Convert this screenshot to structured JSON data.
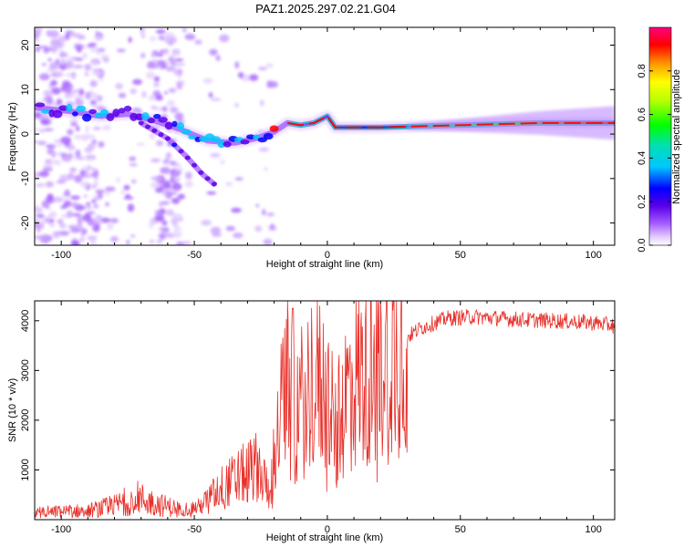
{
  "chart_data": [
    {
      "type": "heatmap",
      "title": "PAZ1.2025.297.02.21.G04",
      "xlabel": "Height of straight line (km)",
      "ylabel": "Frequency (Hz)",
      "xlim": [
        -110,
        108
      ],
      "ylim": [
        -25,
        24
      ],
      "xticks": [
        -100,
        -50,
        0,
        50,
        100
      ],
      "yticks": [
        -20,
        -10,
        0,
        10,
        20
      ],
      "colorbar": {
        "label": "Normalized spectral amplitude",
        "range": [
          0.0,
          1.0
        ],
        "ticks": [
          0.0,
          0.2,
          0.4,
          0.6,
          0.8
        ]
      },
      "ridge_frequency_hz": [
        {
          "x": -110,
          "y": 6.0
        },
        {
          "x": -95,
          "y": 5.0
        },
        {
          "x": -85,
          "y": 4.0
        },
        {
          "x": -75,
          "y": 4.5
        },
        {
          "x": -65,
          "y": 3.0
        },
        {
          "x": -55,
          "y": 1.0
        },
        {
          "x": -45,
          "y": -1.5
        },
        {
          "x": -35,
          "y": -2.0
        },
        {
          "x": -27,
          "y": -1.0
        },
        {
          "x": -20,
          "y": 0.5
        },
        {
          "x": -15,
          "y": 2.5
        },
        {
          "x": -10,
          "y": 2.0
        },
        {
          "x": -5,
          "y": 2.5
        },
        {
          "x": 0,
          "y": 4.0
        },
        {
          "x": 3,
          "y": 1.5
        },
        {
          "x": 20,
          "y": 1.5
        },
        {
          "x": 50,
          "y": 2.0
        },
        {
          "x": 80,
          "y": 2.5
        },
        {
          "x": 108,
          "y": 2.5
        }
      ],
      "secondary_branch_hz": [
        {
          "x": -70,
          "y": 2.5
        },
        {
          "x": -60,
          "y": -1.0
        },
        {
          "x": -53,
          "y": -5.0
        },
        {
          "x": -47,
          "y": -9.0
        },
        {
          "x": -42,
          "y": -11.5
        }
      ]
    },
    {
      "type": "line",
      "title": "",
      "xlabel": "Height of straight line (km)",
      "ylabel": "SNR (10 * v/v)",
      "xlim": [
        -110,
        108
      ],
      "ylim": [
        0,
        4400
      ],
      "xticks": [
        -100,
        -50,
        0,
        50,
        100
      ],
      "yticks": [
        1000,
        2000,
        3000,
        4000
      ],
      "color": "#e8302a",
      "envelope": [
        {
          "x": -110,
          "y": 150
        },
        {
          "x": -90,
          "y": 180
        },
        {
          "x": -80,
          "y": 280
        },
        {
          "x": -72,
          "y": 450
        },
        {
          "x": -65,
          "y": 330
        },
        {
          "x": -55,
          "y": 200
        },
        {
          "x": -48,
          "y": 260
        },
        {
          "x": -40,
          "y": 650
        },
        {
          "x": -32,
          "y": 900
        },
        {
          "x": -26,
          "y": 1100
        },
        {
          "x": -22,
          "y": 600
        },
        {
          "x": -18,
          "y": 1900
        },
        {
          "x": -15,
          "y": 3300
        },
        {
          "x": -12,
          "y": 2100
        },
        {
          "x": -5,
          "y": 2900
        },
        {
          "x": 0,
          "y": 2500
        },
        {
          "x": 3,
          "y": 1700
        },
        {
          "x": 8,
          "y": 2700
        },
        {
          "x": 15,
          "y": 3000
        },
        {
          "x": 25,
          "y": 3500
        },
        {
          "x": 35,
          "y": 3850
        },
        {
          "x": 45,
          "y": 4050
        },
        {
          "x": 55,
          "y": 4080
        },
        {
          "x": 70,
          "y": 4030
        },
        {
          "x": 85,
          "y": 4000
        },
        {
          "x": 100,
          "y": 3960
        },
        {
          "x": 108,
          "y": 3900
        }
      ],
      "peak": {
        "x": -13,
        "y": 4250
      }
    }
  ]
}
